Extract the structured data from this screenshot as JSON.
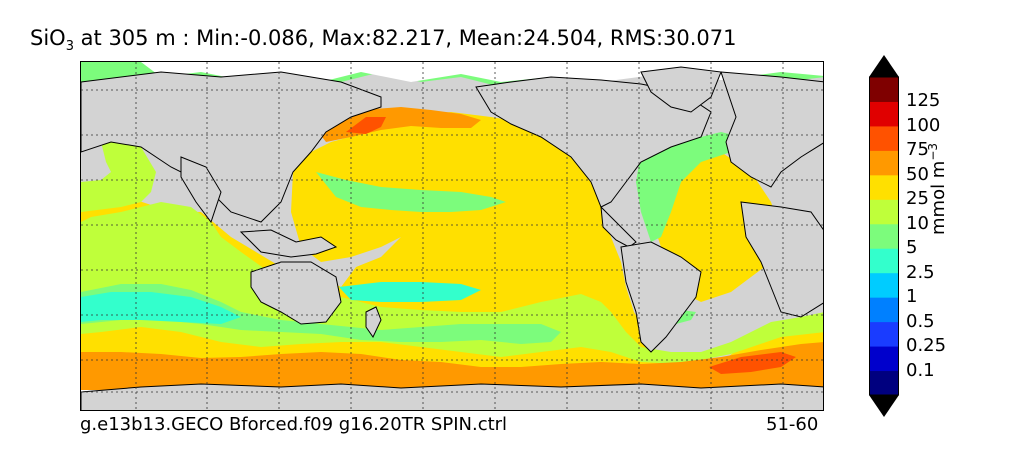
{
  "title": {
    "variable": "SiO",
    "subscript": "3",
    "rest": " at 305 m : Min:-0.086, Max:82.217, Mean:24.504, RMS:30.071"
  },
  "footer": {
    "run_name": "g.e13b13.GECO Bforced.f09 g16.20TR SPIN.ctrl",
    "years": "51-60"
  },
  "colorbar": {
    "units_base": "mmol m",
    "units_exp": "−3",
    "tick_labels": [
      "0.1",
      "0.25",
      "0.5",
      "1",
      "2.5",
      "5",
      "10",
      "25",
      "50",
      "75",
      "100",
      "125"
    ],
    "colors": [
      "#00007f",
      "#0000cc",
      "#1a3cff",
      "#0080ff",
      "#00ccff",
      "#33ffcc",
      "#7cfc7c",
      "#bfff3a",
      "#ffe000",
      "#ff9900",
      "#ff5200",
      "#e00000",
      "#7f0000"
    ]
  },
  "map_colors": {
    "land": "#d3d3d3",
    "ice": "#ffffff",
    "level_2_5_5": "#33ffcc",
    "level_5_10": "#7cfc7c",
    "level_10_25": "#bfff3a",
    "level_25_50": "#ffe000",
    "level_50_75": "#ff9900",
    "level_75_100": "#ff5200"
  }
}
